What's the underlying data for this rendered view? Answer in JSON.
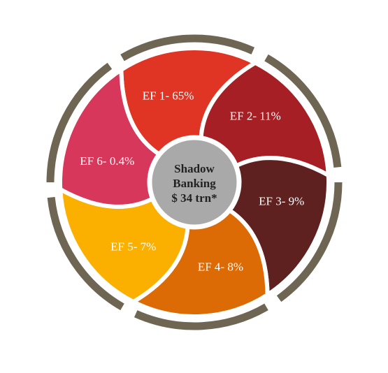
{
  "center": {
    "lines": [
      "Shadow",
      "Banking",
      "$ 34 trn*"
    ]
  },
  "segments": [
    {
      "label": "EF 1- 65%",
      "color": "#e03424"
    },
    {
      "label": "EF 2- 11%",
      "color": "#a51f24"
    },
    {
      "label": "EF 3- 9%",
      "color": "#5e2120"
    },
    {
      "label": "EF 4- 8%",
      "color": "#dc6a05"
    },
    {
      "label": "EF 5- 7%",
      "color": "#fbb000"
    },
    {
      "label": "EF 6- 0.4%",
      "color": "#d6375a"
    }
  ]
}
